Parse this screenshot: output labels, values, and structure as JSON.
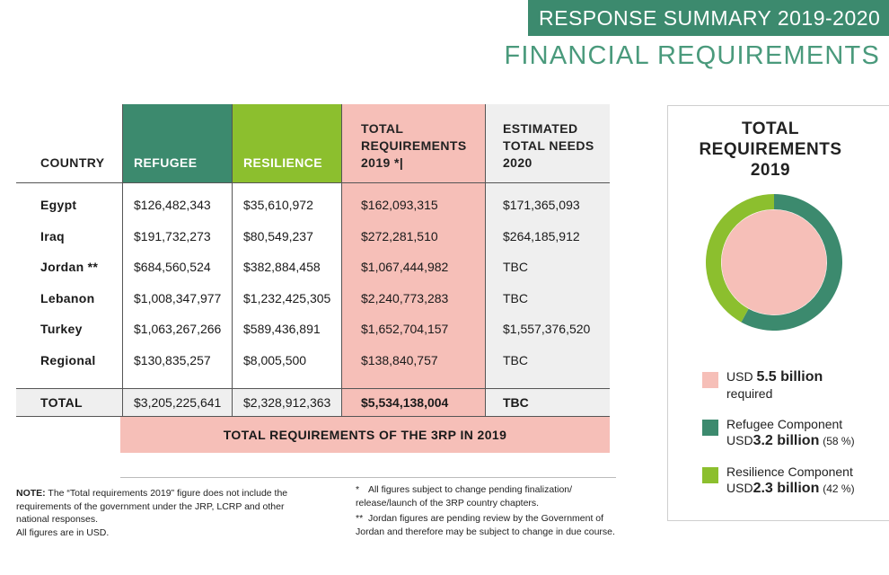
{
  "header": {
    "banner": "RESPONSE SUMMARY 2019-2020",
    "subtitle": "FINANCIAL REQUIREMENTS"
  },
  "table": {
    "headers": {
      "country": "COUNTRY",
      "refugee": "REFUGEE",
      "resilience": "RESILIENCE",
      "total_line1": "TOTAL",
      "total_line2": "REQUIREMENTS",
      "total_line3": "2019 *|",
      "need_line1": "ESTIMATED",
      "need_line2": "TOTAL NEEDS",
      "need_line3": "2020"
    },
    "rows": [
      {
        "country": "Egypt",
        "refugee": "$126,482,343",
        "resilience": "$35,610,972",
        "total": "$162,093,315",
        "need": "$171,365,093"
      },
      {
        "country": "Iraq",
        "refugee": "$191,732,273",
        "resilience": "$80,549,237",
        "total": "$272,281,510",
        "need": "$264,185,912"
      },
      {
        "country": "Jordan **",
        "refugee": "$684,560,524",
        "resilience": "$382,884,458",
        "total": "$1,067,444,982",
        "need": "TBC"
      },
      {
        "country": "Lebanon",
        "refugee": "$1,008,347,977",
        "resilience": "$1,232,425,305",
        "total": "$2,240,773,283",
        "need": "TBC"
      },
      {
        "country": "Turkey",
        "refugee": "$1,063,267,266",
        "resilience": "$589,436,891",
        "total": "$1,652,704,157",
        "need": "$1,557,376,520"
      },
      {
        "country": "Regional",
        "refugee": "$130,835,257",
        "resilience": "$8,005,500",
        "total": "$138,840,757",
        "need": "TBC"
      }
    ],
    "total_row": {
      "country": "TOTAL",
      "refugee": "$3,205,225,641",
      "resilience": "$2,328,912,363",
      "total": "$5,534,138,004",
      "need": "TBC"
    },
    "requirements_bar": "TOTAL REQUIREMENTS OF THE 3RP IN 2019"
  },
  "notes": {
    "note_lead": "NOTE:",
    "note_text": "The “Total requirements 2019” figure does not include the requirements of the government under the JRP, LCRP and other national responses.",
    "note_units": "All figures are in USD.",
    "foot1_sym": "*",
    "foot1_text": "All figures subject to change pending finalization/ release/launch of the 3RP country chapters.",
    "foot2_sym": "**",
    "foot2_text": "Jordan figures are pending review by the Government of Jordan and therefore may be subject to change in due course."
  },
  "panel": {
    "title_line1": "TOTAL",
    "title_line2": "REQUIREMENTS",
    "title_line3": "2019",
    "legend": [
      {
        "prefix": "USD",
        "amount": "5.5 billion",
        "suffix": "",
        "second_line": "required",
        "color": "#f6bfb8"
      },
      {
        "prefix": "USD",
        "amount": "3.2 billion",
        "suffix": "(58 %)",
        "label": "Refugee Component",
        "color": "#3c8a6e"
      },
      {
        "prefix": "USD",
        "amount": "2.3 billion",
        "suffix": "(42 %)",
        "label": "Resilience Component",
        "color": "#8cbf2e"
      }
    ]
  },
  "chart_data": {
    "type": "pie",
    "categories": [
      "Refugee Component",
      "Resilience Component"
    ],
    "values": [
      58,
      42
    ],
    "colors": [
      "#3c8a6e",
      "#8cbf2e"
    ],
    "center_color": "#f6bfb8",
    "title": "TOTAL REQUIREMENTS 2019"
  }
}
